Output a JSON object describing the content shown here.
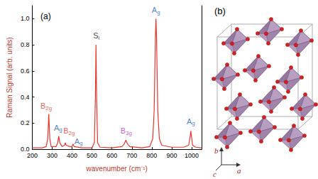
{
  "chart_data": {
    "type": "line",
    "title": "(a)",
    "x_label": "wavenumber (cm⁻¹)",
    "y_label": "Raman Signal (arb. units)",
    "x": [
      200,
      250,
      270,
      278,
      283,
      288,
      295,
      320,
      328,
      333,
      338,
      350,
      362,
      366,
      370,
      390,
      400,
      405,
      410,
      450,
      500,
      512,
      517,
      520,
      523,
      528,
      540,
      600,
      650,
      662,
      670,
      678,
      690,
      750,
      790,
      805,
      812,
      818,
      821,
      824,
      830,
      838,
      850,
      900,
      960,
      985,
      993,
      996,
      999,
      1005,
      1020,
      1050
    ],
    "values": [
      0.01,
      0.01,
      0.02,
      0.08,
      0.27,
      0.08,
      0.02,
      0.02,
      0.05,
      0.1,
      0.05,
      0.02,
      0.03,
      0.05,
      0.03,
      0.02,
      0.02,
      0.04,
      0.02,
      0.01,
      0.01,
      0.05,
      0.4,
      0.8,
      0.4,
      0.05,
      0.015,
      0.01,
      0.02,
      0.04,
      0.07,
      0.04,
      0.02,
      0.01,
      0.02,
      0.08,
      0.3,
      0.85,
      1.0,
      0.85,
      0.3,
      0.08,
      0.03,
      0.015,
      0.015,
      0.03,
      0.1,
      0.14,
      0.1,
      0.03,
      0.015,
      0.01
    ],
    "color": "#e8352e",
    "xlim": [
      200,
      1050
    ],
    "xticks": [
      200,
      300,
      400,
      500,
      600,
      700,
      800,
      900,
      1000
    ],
    "ylim": [
      0,
      1.1
    ],
    "yticks": [
      {
        "value": 0,
        "label": "0.0"
      },
      {
        "value": 0.2,
        "label": "0.2"
      },
      {
        "value": 0.4,
        "label": "0.4"
      },
      {
        "value": 0.6,
        "label": "0.6"
      },
      {
        "value": 0.8,
        "label": "0.8"
      },
      {
        "value": 1,
        "label": "1.0"
      }
    ],
    "grid": false,
    "annotations": [
      {
        "text": "B2g",
        "x": 270,
        "y": 0.33,
        "color": "#e8352e"
      },
      {
        "text": "Ag",
        "x": 330,
        "y": 0.165,
        "color": "#1f5fbf"
      },
      {
        "text": "B2g",
        "x": 385,
        "y": 0.14,
        "color": "#e8352e"
      },
      {
        "text": "Ag",
        "x": 432,
        "y": 0.06,
        "color": "#1f5fbf"
      },
      {
        "text": "Si",
        "x": 522,
        "y": 0.87,
        "color": "#111111"
      },
      {
        "text": "B3g",
        "x": 672,
        "y": 0.14,
        "color": "#c030c0"
      },
      {
        "text": "Ag",
        "x": 821,
        "y": 1.065,
        "color": "#1f5fbf"
      },
      {
        "text": "Ag",
        "x": 996,
        "y": 0.215,
        "color": "#1f5fbf"
      }
    ]
  },
  "panel_b": {
    "label": "(b)",
    "axes": {
      "a": "a",
      "b": "b",
      "c": "c"
    }
  }
}
